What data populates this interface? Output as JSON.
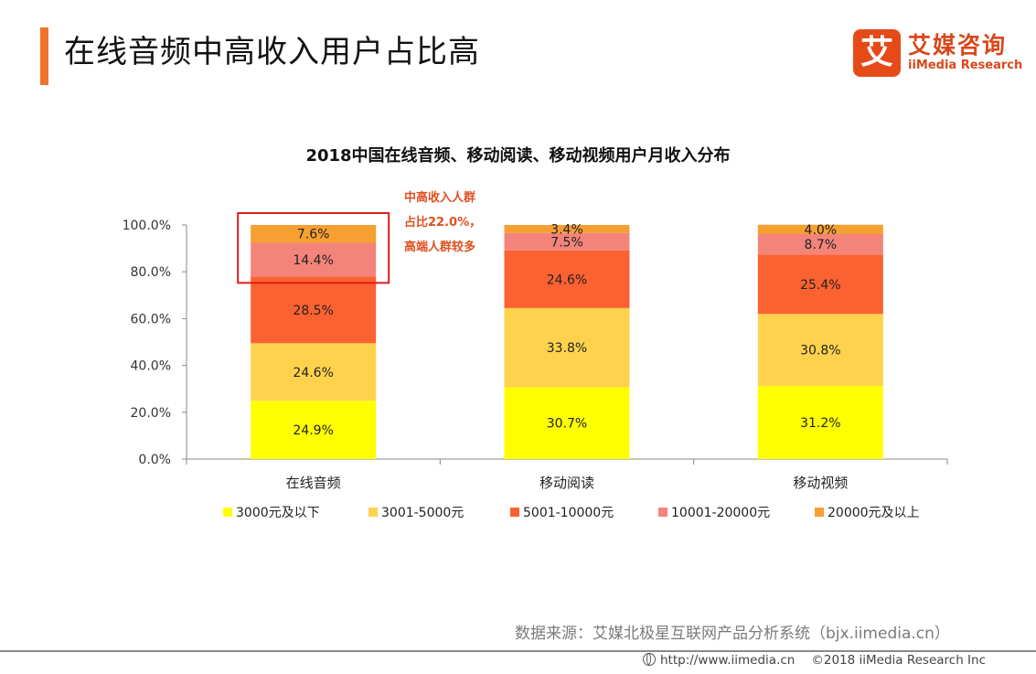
{
  "header": {
    "title": "在线音频中高收入用户占比高",
    "logo": {
      "mark": "艾",
      "name_cn": "艾媒咨询",
      "name_en": "iiMedia Research"
    }
  },
  "annotation": {
    "lines": [
      "中高收入人群",
      "占比22.0%，",
      "高端人群较多"
    ],
    "color": "#e0501f"
  },
  "chart_data": {
    "type": "bar",
    "stacked": true,
    "title": "2018中国在线音频、移动阅读、移动视频用户月收入分布",
    "xlabel": "",
    "ylabel": "",
    "categories": [
      "在线音频",
      "移动阅读",
      "移动视频"
    ],
    "ylim": [
      0,
      100
    ],
    "yticks": [
      "0.0%",
      "20.0%",
      "40.0%",
      "60.0%",
      "80.0%",
      "100.0%"
    ],
    "grid": false,
    "legend_position": "bottom",
    "series": [
      {
        "name": "3000元及以下",
        "color": "#ffff00",
        "values": [
          24.9,
          30.7,
          31.2
        ],
        "labels": [
          "24.9%",
          "30.7%",
          "31.2%"
        ]
      },
      {
        "name": "3001-5000元",
        "color": "#ffd24d",
        "values": [
          24.6,
          33.8,
          30.8
        ],
        "labels": [
          "24.6%",
          "33.8%",
          "30.8%"
        ]
      },
      {
        "name": "5001-10000元",
        "color": "#fb6231",
        "values": [
          28.5,
          24.6,
          25.4
        ],
        "labels": [
          "28.5%",
          "24.6%",
          "25.4%"
        ]
      },
      {
        "name": "10001-20000元",
        "color": "#f4847a",
        "values": [
          14.4,
          7.5,
          8.7
        ],
        "labels": [
          "14.4%",
          "7.5%",
          "8.7%"
        ]
      },
      {
        "name": "20000元及以上",
        "color": "#f6a032",
        "values": [
          7.6,
          3.4,
          4.0
        ],
        "labels": [
          "7.6%",
          "3.4%",
          "4.0%"
        ]
      }
    ],
    "highlight": {
      "category": "在线音频",
      "series": [
        "10001-20000元",
        "20000元及以上"
      ],
      "color": "#e11d1d"
    }
  },
  "footer": {
    "source": "数据来源：艾媒北极星互联网产品分析系统（bjx.iimedia.cn）",
    "url": "http://www.iimedia.cn",
    "copyright": "©2018  iiMedia Research  Inc"
  }
}
